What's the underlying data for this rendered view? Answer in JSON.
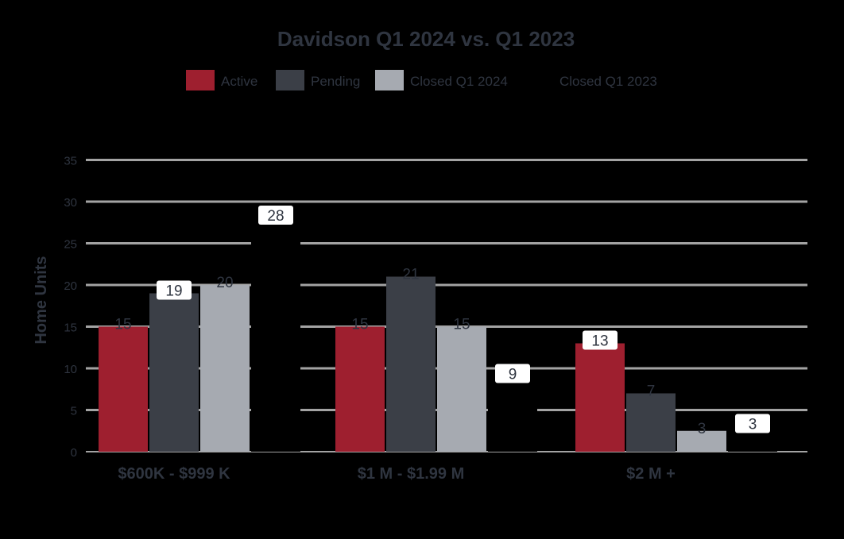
{
  "chart_data": {
    "type": "bar",
    "title": "Davidson Q1 2024 vs. Q1 2023",
    "xlabel": "",
    "ylabel": "Home Units",
    "ylim": [
      0,
      35
    ],
    "yticks": [
      0,
      5,
      10,
      15,
      20,
      25,
      30,
      35
    ],
    "categories": [
      "$600K - $999 K",
      "$1 M - $1.99 M",
      "$2 M +"
    ],
    "series": [
      {
        "name": "Active",
        "values": [
          15,
          15,
          13
        ],
        "labels": [
          "15",
          "15",
          "13"
        ]
      },
      {
        "name": "Pending",
        "values": [
          19,
          21,
          7
        ],
        "labels": [
          "19",
          "21",
          "7"
        ]
      },
      {
        "name": "Closed Q1 2024",
        "values": [
          20,
          15,
          2.5
        ],
        "labels": [
          "20",
          "15",
          "3"
        ]
      },
      {
        "name": "Closed Q1 2023",
        "values": [
          28,
          9,
          3
        ],
        "labels": [
          "28",
          "9",
          "3"
        ]
      }
    ],
    "legend": "top",
    "grid": true,
    "colors": {
      "background": "#000000",
      "Active": "#9e1f2f",
      "Pending": "#3b3f47",
      "Closed Q1 2024": "#a6aab1",
      "Closed Q1 2023": "#000000",
      "grid": "#a3a3a3",
      "text": "#2f3540",
      "label_box": "#ffffff"
    }
  }
}
